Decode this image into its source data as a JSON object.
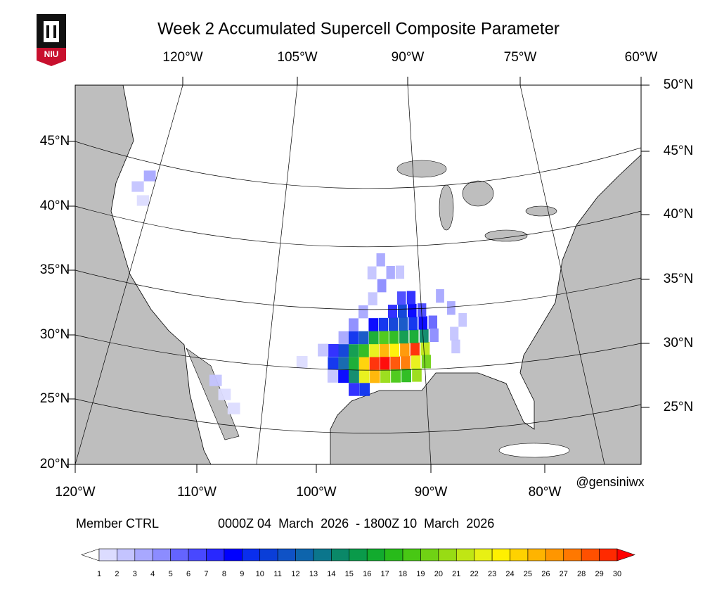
{
  "title": "Week 2 Accumulated Supercell Composite Parameter",
  "logo": "NIU",
  "credit": "@gensiniwx",
  "member": "Member CTRL",
  "period": "0000Z 04  March  2026  - 1800Z 10  March  2026",
  "axes": {
    "top": [
      "120°W",
      "105°W",
      "90°W",
      "75°W",
      "60°W"
    ],
    "bottom": [
      "120°W",
      "110°W",
      "100°W",
      "90°W",
      "80°W"
    ],
    "left": [
      "45°N",
      "40°N",
      "35°N",
      "30°N",
      "25°N",
      "20°N"
    ],
    "right": [
      "50°N",
      "45°N",
      "40°N",
      "35°N",
      "30°N",
      "25°N"
    ]
  },
  "colorbar": {
    "levels": [
      1,
      2,
      3,
      4,
      5,
      6,
      7,
      8,
      9,
      10,
      11,
      12,
      13,
      14,
      15,
      16,
      17,
      18,
      19,
      20,
      21,
      22,
      23,
      24,
      25,
      26,
      27,
      28,
      29,
      30
    ],
    "colors": [
      "#ffffff",
      "#dcdcff",
      "#c4c4ff",
      "#a8a8ff",
      "#8c8cff",
      "#6464ff",
      "#4848ff",
      "#2828ff",
      "#0000ff",
      "#0a2eee",
      "#0a3ed8",
      "#0f52c6",
      "#0d64ac",
      "#0b768c",
      "#0a8868",
      "#0a9a4a",
      "#12ab2e",
      "#28bb1a",
      "#48c814",
      "#70d214",
      "#98dc14",
      "#c0e614",
      "#e8f014",
      "#fff000",
      "#ffd200",
      "#ffb400",
      "#ff9600",
      "#ff7800",
      "#ff5000",
      "#ff2a00",
      "#ff0000"
    ]
  },
  "cells": [
    [
      -95,
      30,
      29
    ],
    [
      -94,
      30,
      30
    ],
    [
      -93,
      30,
      28
    ],
    [
      -92,
      30,
      27
    ],
    [
      -91,
      31,
      29
    ],
    [
      -96,
      30,
      24
    ],
    [
      -95,
      31,
      22
    ],
    [
      -94,
      31,
      25
    ],
    [
      -93,
      31,
      23
    ],
    [
      -92,
      31,
      26
    ],
    [
      -91,
      30,
      22
    ],
    [
      -90,
      31,
      21
    ],
    [
      -90,
      30,
      19
    ],
    [
      -96,
      29,
      22
    ],
    [
      -95,
      29,
      25
    ],
    [
      -94,
      29,
      20
    ],
    [
      -93,
      29,
      18
    ],
    [
      -92,
      29,
      17
    ],
    [
      -91,
      29,
      20
    ],
    [
      -97,
      30,
      16
    ],
    [
      -97,
      31,
      15
    ],
    [
      -96,
      31,
      17
    ],
    [
      -95,
      32,
      16
    ],
    [
      -94,
      32,
      18
    ],
    [
      -93,
      32,
      17
    ],
    [
      -92,
      32,
      15
    ],
    [
      -91,
      32,
      16
    ],
    [
      -90,
      32,
      14
    ],
    [
      -97,
      29,
      14
    ],
    [
      -98,
      30,
      12
    ],
    [
      -98,
      31,
      10
    ],
    [
      -97,
      32,
      9
    ],
    [
      -96,
      32,
      11
    ],
    [
      -95,
      33,
      8
    ],
    [
      -94,
      33,
      9
    ],
    [
      -93,
      33,
      10
    ],
    [
      -92,
      33,
      11
    ],
    [
      -91,
      33,
      9
    ],
    [
      -90,
      33,
      8
    ],
    [
      -92,
      34,
      10
    ],
    [
      -91,
      34,
      8
    ],
    [
      -93,
      34,
      7
    ],
    [
      -99,
      30,
      9
    ],
    [
      -99,
      31,
      7
    ],
    [
      -98,
      29,
      8
    ],
    [
      -97,
      28,
      7
    ],
    [
      -96,
      28,
      9
    ],
    [
      -90,
      34,
      6
    ],
    [
      -89,
      33,
      5
    ],
    [
      -91,
      35,
      7
    ],
    [
      -92,
      35,
      6
    ],
    [
      -89,
      32,
      4
    ],
    [
      -96,
      34,
      3
    ],
    [
      -95,
      35,
      2
    ],
    [
      -94,
      36,
      4
    ],
    [
      -93,
      37,
      3
    ],
    [
      -92,
      37,
      2
    ],
    [
      -95,
      37,
      2
    ],
    [
      -94,
      38,
      3
    ],
    [
      -97,
      33,
      4
    ],
    [
      -98,
      32,
      3
    ],
    [
      -99,
      29,
      2
    ],
    [
      -87,
      32,
      2
    ],
    [
      -87,
      34,
      3
    ],
    [
      -86,
      33,
      2
    ],
    [
      -88,
      35,
      3
    ],
    [
      -100,
      31,
      2
    ],
    [
      -102,
      30,
      1
    ],
    [
      -109,
      27,
      1
    ],
    [
      -110,
      28,
      2
    ],
    [
      -108,
      26,
      1
    ],
    [
      -122,
      42,
      2
    ],
    [
      -121,
      43,
      3
    ],
    [
      -121,
      41,
      1
    ],
    [
      -87,
      31,
      2
    ]
  ]
}
